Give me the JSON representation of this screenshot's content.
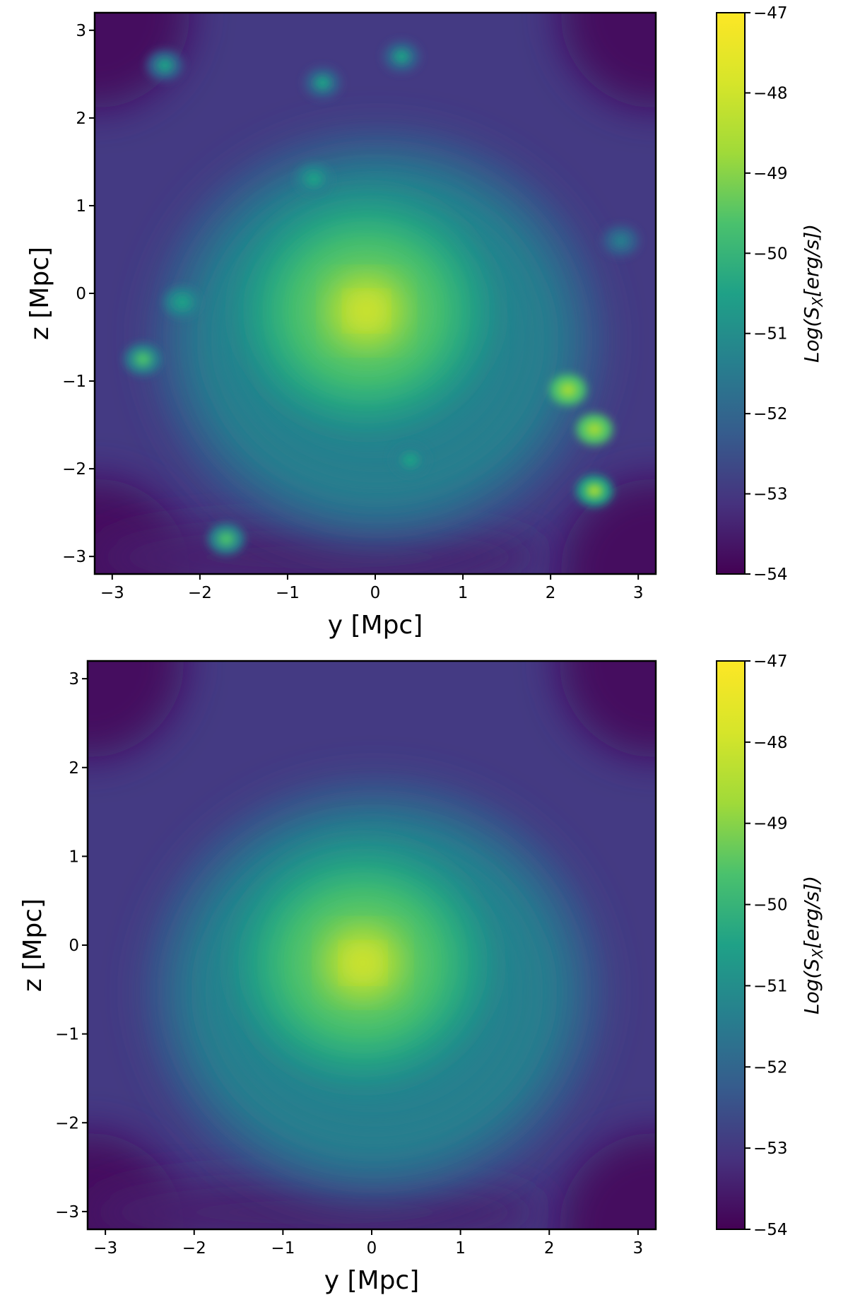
{
  "chart_data": [
    {
      "type": "heatmap",
      "xlabel": "y [Mpc]",
      "ylabel": "z [Mpc]",
      "xlim": [
        -3.2,
        3.2
      ],
      "ylim": [
        -3.2,
        3.2
      ],
      "x_ticks": [
        "−3",
        "−2",
        "−1",
        "0",
        "1",
        "2",
        "3"
      ],
      "y_ticks": [
        "−3",
        "−2",
        "−1",
        "0",
        "1",
        "2",
        "3"
      ],
      "colorbar": {
        "label_prefix": "Log(S",
        "label_sub": "X",
        "label_suffix": "[erg/s])",
        "range": [
          -54,
          -47
        ],
        "ticks": [
          "−47",
          "−48",
          "−49",
          "−50",
          "−51",
          "−52",
          "−53",
          "−54"
        ],
        "colormap": "viridis"
      },
      "center_peak": {
        "y": -0.1,
        "z": -0.2,
        "value": -47.3
      },
      "blobs": [
        {
          "y": 2.2,
          "z": -1.1,
          "value": -48.5
        },
        {
          "y": 2.5,
          "z": -1.55,
          "value": -48.8
        },
        {
          "y": 2.5,
          "z": -2.25,
          "value": -49.0
        },
        {
          "y": -2.65,
          "z": -0.75,
          "value": -49.8
        },
        {
          "y": -2.2,
          "z": -0.1,
          "value": -50.3
        },
        {
          "y": 0.4,
          "z": -1.9,
          "value": -50.5
        },
        {
          "y": -1.7,
          "z": -2.8,
          "value": -50.0
        },
        {
          "y": 0.3,
          "z": 2.7,
          "value": -50.8
        },
        {
          "y": -0.6,
          "z": 2.4,
          "value": -50.8
        },
        {
          "y": -0.7,
          "z": 1.3,
          "value": -50.5
        },
        {
          "y": -2.4,
          "z": 2.6,
          "value": -50.8
        },
        {
          "y": 2.8,
          "z": 0.6,
          "value": -51.0
        }
      ]
    },
    {
      "type": "heatmap",
      "xlabel": "y [Mpc]",
      "ylabel": "z [Mpc]",
      "xlim": [
        -3.2,
        3.2
      ],
      "ylim": [
        -3.2,
        3.2
      ],
      "x_ticks": [
        "−3",
        "−2",
        "−1",
        "0",
        "1",
        "2",
        "3"
      ],
      "y_ticks": [
        "−3",
        "−2",
        "−1",
        "0",
        "1",
        "2",
        "3"
      ],
      "colorbar": {
        "label_prefix": "Log(S",
        "label_sub": "X",
        "label_suffix": "[erg/s])",
        "range": [
          -54,
          -47
        ],
        "ticks": [
          "−47",
          "−48",
          "−49",
          "−50",
          "−51",
          "−52",
          "−53",
          "−54"
        ],
        "colormap": "viridis"
      },
      "center_peak": {
        "y": -0.1,
        "z": -0.2,
        "value": -47.3
      },
      "blobs": []
    }
  ],
  "colors": {
    "viridis_0": "#440154",
    "viridis_25": "#3b528b",
    "viridis_50": "#21918c",
    "viridis_75": "#5ec962",
    "viridis_100": "#fde725"
  }
}
